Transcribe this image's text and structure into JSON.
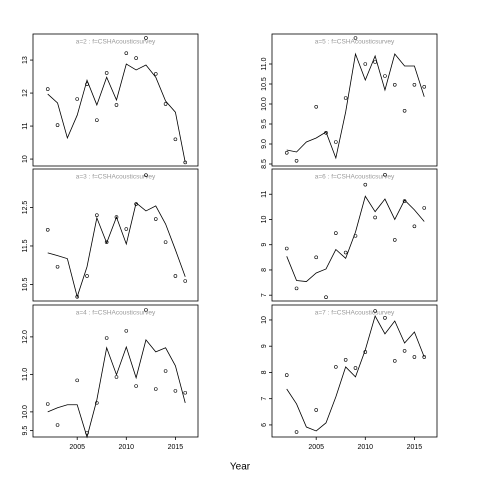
{
  "xlabel": "Year",
  "chart_data": [
    {
      "type": "line",
      "title": "a=2 : f=CSHAcousticsurvey",
      "x": [
        2002,
        2003,
        2004,
        2005,
        2006,
        2007,
        2008,
        2009,
        2010,
        2011,
        2012,
        2013,
        2014,
        2015,
        2016
      ],
      "series": [
        {
          "mode": "line",
          "color": "#000000",
          "values": [
            11.97,
            11.7,
            10.64,
            11.33,
            12.39,
            11.64,
            12.48,
            11.79,
            12.88,
            12.7,
            12.85,
            12.48,
            11.76,
            11.42,
            9.9
          ]
        },
        {
          "mode": "points",
          "color": "#000000",
          "values": [
            12.12,
            11.03,
            null,
            11.82,
            12.27,
            11.18,
            12.61,
            11.64,
            13.21,
            13.06,
            13.67,
            12.58,
            11.67,
            10.6,
            9.9
          ]
        }
      ],
      "xlim": [
        2000.5,
        2017.3
      ],
      "ylim": [
        9.79,
        13.79
      ],
      "yticks": [
        10,
        11,
        12,
        13
      ]
    },
    {
      "type": "line",
      "title": "a=3 : f=CSHAcousticsurvey",
      "x": [
        2002,
        2003,
        2004,
        2005,
        2006,
        2007,
        2008,
        2009,
        2010,
        2011,
        2012,
        2013,
        2014,
        2015,
        2016
      ],
      "series": [
        {
          "mode": "line",
          "color": "#000000",
          "values": [
            11.32,
            11.25,
            11.17,
            10.18,
            10.96,
            12.23,
            11.58,
            12.25,
            11.55,
            12.62,
            12.41,
            12.54,
            12.07,
            11.4,
            10.7
          ]
        },
        {
          "mode": "points",
          "color": "#000000",
          "values": [
            11.92,
            10.96,
            null,
            10.18,
            10.72,
            12.3,
            11.6,
            12.25,
            11.94,
            12.59,
            13.34,
            12.2,
            11.6,
            10.72,
            10.59
          ]
        }
      ],
      "xlim": [
        2000.5,
        2017.3
      ],
      "ylim": [
        10.07,
        13.5
      ],
      "yticks": [
        10.5,
        11.5,
        12.5
      ]
    },
    {
      "type": "line",
      "title": "a=4 : f=CSHAcousticsurvey",
      "x": [
        2002,
        2003,
        2004,
        2005,
        2006,
        2007,
        2008,
        2009,
        2010,
        2011,
        2012,
        2013,
        2014,
        2015,
        2016
      ],
      "series": [
        {
          "mode": "line",
          "color": "#000000",
          "values": [
            10.0,
            10.11,
            10.19,
            10.19,
            9.33,
            10.32,
            11.71,
            10.99,
            11.73,
            10.91,
            11.92,
            11.6,
            11.71,
            11.23,
            10.24
          ]
        },
        {
          "mode": "points",
          "color": "#000000",
          "values": [
            10.21,
            9.65,
            null,
            10.84,
            9.44,
            10.24,
            11.97,
            10.93,
            12.16,
            10.69,
            12.72,
            10.61,
            11.09,
            10.56,
            10.51
          ]
        }
      ],
      "xlim": [
        2000.5,
        2017.3
      ],
      "ylim": [
        9.33,
        12.85
      ],
      "yticks": [
        9.5,
        {
          "value": 10,
          "label": "10.0"
        },
        {
          "value": 11,
          "label": "11.0"
        },
        {
          "value": 12,
          "label": "12.0"
        }
      ],
      "xticks": [
        2005,
        2010,
        2015
      ]
    },
    {
      "type": "line",
      "title": "a=5 : f=CSHAcousticsurvey",
      "x": [
        2002,
        2003,
        2004,
        2005,
        2006,
        2007,
        2008,
        2009,
        2010,
        2011,
        2012,
        2013,
        2014,
        2015,
        2016
      ],
      "series": [
        {
          "mode": "line",
          "color": "#000000",
          "values": [
            8.85,
            8.8,
            9.05,
            9.15,
            9.3,
            8.65,
            9.8,
            11.25,
            10.6,
            11.2,
            10.35,
            11.25,
            10.95,
            10.95,
            10.18
          ]
        },
        {
          "mode": "points",
          "color": "#000000",
          "values": [
            8.78,
            8.58,
            null,
            9.93,
            9.28,
            9.05,
            10.15,
            11.65,
            11.0,
            11.05,
            10.7,
            10.48,
            9.83,
            10.48,
            10.43
          ]
        }
      ],
      "xlim": [
        2000.5,
        2017.3
      ],
      "ylim": [
        8.45,
        11.75
      ],
      "yticks": [
        8.5,
        {
          "value": 9,
          "label": "9.0"
        },
        9.5,
        {
          "value": 10,
          "label": "10.0"
        },
        10.5,
        {
          "value": 11,
          "label": "11.0"
        }
      ]
    },
    {
      "type": "line",
      "title": "a=6 : f=CSHAcousticsurvey",
      "x": [
        2002,
        2003,
        2004,
        2005,
        2006,
        2007,
        2008,
        2009,
        2010,
        2011,
        2012,
        2013,
        2014,
        2015,
        2016
      ],
      "series": [
        {
          "mode": "line",
          "color": "#000000",
          "values": [
            8.54,
            7.58,
            7.54,
            7.88,
            8.04,
            8.81,
            8.46,
            9.5,
            10.92,
            10.31,
            10.81,
            10.0,
            10.77,
            10.38,
            9.92
          ]
        },
        {
          "mode": "points",
          "color": "#000000",
          "values": [
            8.85,
            7.27,
            null,
            8.5,
            6.92,
            9.46,
            8.69,
            9.35,
            11.38,
            10.08,
            11.77,
            9.19,
            10.73,
            9.73,
            10.46
          ]
        }
      ],
      "xlim": [
        2000.5,
        2017.3
      ],
      "ylim": [
        6.77,
        12.0
      ],
      "yticks": [
        7,
        8,
        9,
        10,
        11
      ]
    },
    {
      "type": "line",
      "title": "a=7 : f=CSHAcousticsurvey",
      "x": [
        2002,
        2003,
        2004,
        2005,
        2006,
        2007,
        2008,
        2009,
        2010,
        2011,
        2012,
        2013,
        2014,
        2015,
        2016
      ],
      "series": [
        {
          "mode": "line",
          "color": "#000000",
          "values": [
            7.37,
            6.8,
            5.92,
            5.77,
            6.08,
            7.07,
            8.21,
            7.83,
            8.86,
            10.15,
            9.47,
            9.96,
            9.12,
            9.54,
            8.59
          ]
        },
        {
          "mode": "points",
          "color": "#000000",
          "values": [
            7.9,
            5.73,
            null,
            6.57,
            null,
            8.21,
            8.48,
            8.17,
            8.78,
            10.34,
            10.08,
            8.44,
            8.82,
            8.59,
            8.59
          ]
        }
      ],
      "xlim": [
        2000.5,
        2017.3
      ],
      "ylim": [
        5.54,
        10.57
      ],
      "yticks": [
        6,
        7,
        8,
        9,
        10
      ],
      "xticks": [
        2005,
        2010,
        2015
      ]
    }
  ]
}
